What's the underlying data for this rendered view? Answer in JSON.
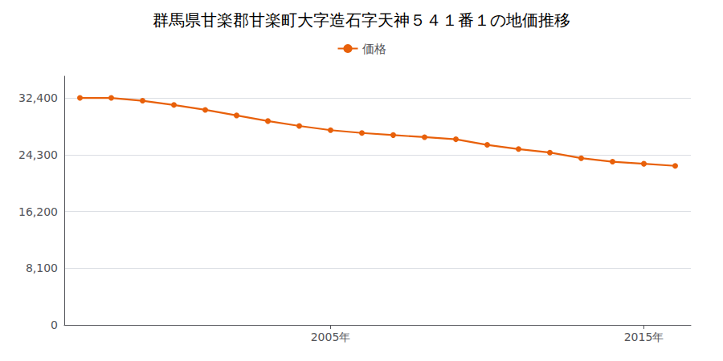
{
  "chart_data": {
    "type": "line",
    "title": "群馬県甘楽郡甘楽町大字造石字天神５４１番１の地価推移",
    "x": [
      1997,
      1998,
      1999,
      2000,
      2001,
      2002,
      2003,
      2004,
      2005,
      2006,
      2007,
      2008,
      2009,
      2010,
      2011,
      2012,
      2013,
      2014,
      2015,
      2016
    ],
    "series": [
      {
        "name": "価格",
        "color": "#e8600a",
        "marker": "circle",
        "values": [
          32400,
          32400,
          32000,
          31400,
          30700,
          29900,
          29100,
          28400,
          27800,
          27400,
          27100,
          26800,
          26500,
          25700,
          25100,
          24600,
          23800,
          23300,
          23000,
          22700
        ]
      }
    ],
    "xlim": [
      1996.5,
      2016.5
    ],
    "xticks": [
      {
        "value": 2005,
        "label": "2005年"
      },
      {
        "value": 2015,
        "label": "2015年"
      }
    ],
    "ylim": [
      0,
      35500
    ],
    "yticks": [
      0,
      {
        "value": 8100,
        "label": "8,100"
      },
      {
        "value": 16200,
        "label": "16,200"
      },
      {
        "value": 24300,
        "label": "24,300"
      },
      {
        "value": 32400,
        "label": "32,400"
      }
    ],
    "grid": true,
    "legend": "top"
  }
}
